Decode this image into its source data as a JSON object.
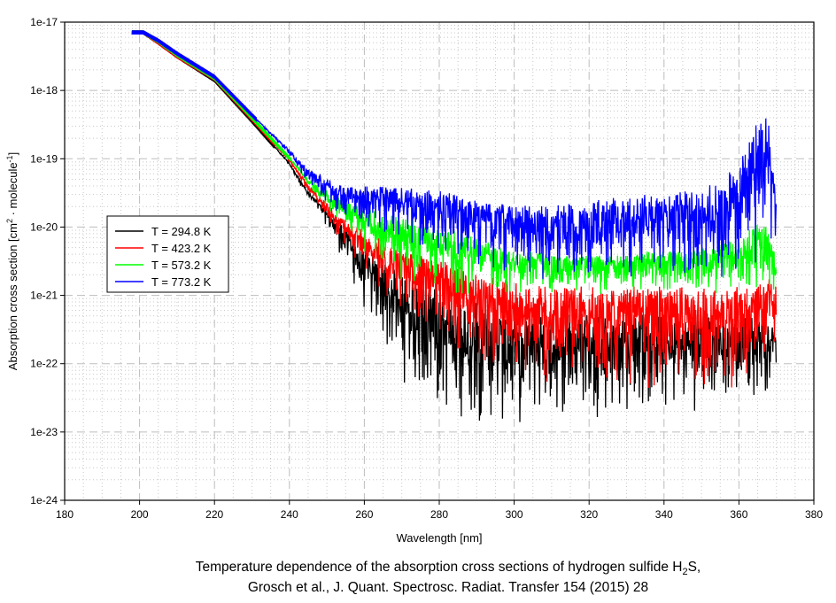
{
  "chart_data": {
    "type": "line",
    "title_lines": [
      "Temperature dependence of the absorption cross sections of hydrogen sulfide H",
      "2",
      "S,",
      "Grosch et al., J. Quant. Spectrosc. Radiat. Transfer 154 (2015) 28"
    ],
    "xlabel": "Wavelength [nm]",
    "ylabel_parts": [
      "Absorption cross section [cm",
      "2",
      " · molecule",
      "-1",
      "]"
    ],
    "xlim": [
      180,
      380
    ],
    "ylim": [
      1e-24,
      1e-17
    ],
    "y_scale": "log",
    "grid": true,
    "legend_position": "middle-left",
    "x_ticks": [
      "180",
      "200",
      "220",
      "240",
      "260",
      "280",
      "300",
      "320",
      "340",
      "360",
      "380"
    ],
    "y_ticks": [
      "1e-17",
      "1e-18",
      "1e-19",
      "1e-20",
      "1e-21",
      "1e-22",
      "1e-23",
      "1e-24"
    ],
    "x": [
      198,
      201,
      205,
      210,
      220,
      230,
      240,
      245,
      250,
      255,
      260,
      265,
      270,
      280,
      290,
      300,
      310,
      320,
      330,
      340,
      350,
      360,
      365,
      368,
      370
    ],
    "series": [
      {
        "name": "T = 294.8 K",
        "color": "#000000",
        "upper_log10": [
          -17.15,
          -17.15,
          -17.3,
          -17.5,
          -17.85,
          -18.45,
          -19.05,
          -19.45,
          -19.7,
          -19.9,
          -20.1,
          -20.25,
          -20.4,
          -20.6,
          -20.8,
          -20.9,
          -21,
          -21,
          -21,
          -21,
          -21,
          -21.1,
          -21.1,
          -21.2,
          -21.3
        ],
        "lower_log10": [
          -17.15,
          -17.15,
          -17.3,
          -17.5,
          -17.85,
          -18.45,
          -19.1,
          -19.6,
          -20.0,
          -20.6,
          -21.3,
          -21.8,
          -22.3,
          -22.8,
          -22.9,
          -23.0,
          -22.8,
          -22.8,
          -22.8,
          -22.8,
          -22.7,
          -22.6,
          -22.5,
          -22.4,
          -22.3
        ]
      },
      {
        "name": "T = 423.2 K",
        "color": "#ff0000",
        "upper_log10": [
          -17.15,
          -17.15,
          -17.3,
          -17.5,
          -17.83,
          -18.42,
          -19.0,
          -19.35,
          -19.6,
          -19.8,
          -19.95,
          -20.05,
          -20.15,
          -20.25,
          -20.4,
          -20.55,
          -20.6,
          -20.6,
          -20.6,
          -20.6,
          -20.6,
          -20.6,
          -20.5,
          -20.5,
          -20.6
        ],
        "lower_log10": [
          -17.15,
          -17.15,
          -17.3,
          -17.5,
          -17.83,
          -18.42,
          -19.05,
          -19.5,
          -19.9,
          -20.3,
          -20.7,
          -21.0,
          -21.2,
          -21.6,
          -22.0,
          -22.3,
          -22.4,
          -22.4,
          -22.4,
          -22.4,
          -22.4,
          -22.4,
          -22.6,
          -22.0,
          -21.6
        ]
      },
      {
        "name": "T = 573.2 K",
        "color": "#00ff00",
        "upper_log10": [
          -17.15,
          -17.15,
          -17.28,
          -17.48,
          -17.82,
          -18.4,
          -18.98,
          -19.25,
          -19.4,
          -19.5,
          -19.6,
          -19.65,
          -19.7,
          -19.8,
          -20.0,
          -20.2,
          -20.3,
          -20.3,
          -20.3,
          -20.2,
          -20.2,
          -20.0,
          -19.7,
          -19.8,
          -20.3
        ],
        "lower_log10": [
          -17.15,
          -17.15,
          -17.28,
          -17.48,
          -17.82,
          -18.4,
          -19.0,
          -19.4,
          -19.8,
          -20.1,
          -20.4,
          -20.6,
          -20.8,
          -21.0,
          -21.0,
          -21.0,
          -21.0,
          -21.0,
          -21.0,
          -21.0,
          -21.0,
          -21.0,
          -21.0,
          -21.0,
          -21.0
        ]
      },
      {
        "name": "T = 773.2 K",
        "color": "#0000ff",
        "upper_log10": [
          -17.15,
          -17.15,
          -17.27,
          -17.46,
          -17.8,
          -18.35,
          -18.85,
          -19.1,
          -19.2,
          -19.3,
          -19.3,
          -19.28,
          -19.25,
          -19.3,
          -19.4,
          -19.5,
          -19.5,
          -19.4,
          -19.3,
          -19.3,
          -19.2,
          -18.8,
          -18.0,
          -17.9,
          -19.5
        ],
        "lower_log10": [
          -17.15,
          -17.15,
          -17.27,
          -17.46,
          -17.8,
          -18.37,
          -18.95,
          -19.4,
          -19.7,
          -19.9,
          -20.0,
          -20.1,
          -20.2,
          -20.4,
          -20.6,
          -20.7,
          -20.8,
          -20.8,
          -20.8,
          -20.8,
          -20.8,
          -20.8,
          -20.7,
          -20.5,
          -20.3
        ]
      }
    ]
  }
}
